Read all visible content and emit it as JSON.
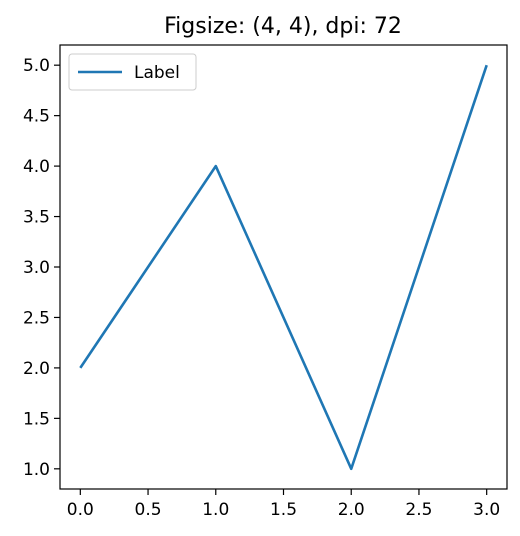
{
  "chart_data": {
    "type": "line",
    "title": "Figsize: (4, 4), dpi: 72",
    "xlabel": "",
    "ylabel": "",
    "x": [
      0,
      1,
      2,
      3
    ],
    "series": [
      {
        "name": "Label",
        "values": [
          2.0,
          4.0,
          1.0,
          5.0
        ],
        "color": "#1f77b4"
      }
    ],
    "xlim": [
      -0.15,
      3.15
    ],
    "ylim": [
      0.8,
      5.2
    ],
    "xticks": [
      0.0,
      0.5,
      1.0,
      1.5,
      2.0,
      2.5,
      3.0
    ],
    "xtick_labels": [
      "0.0",
      "0.5",
      "1.0",
      "1.5",
      "2.0",
      "2.5",
      "3.0"
    ],
    "yticks": [
      1.0,
      1.5,
      2.0,
      2.5,
      3.0,
      3.5,
      4.0,
      4.5,
      5.0
    ],
    "ytick_labels": [
      "1.0",
      "1.5",
      "2.0",
      "2.5",
      "3.0",
      "3.5",
      "4.0",
      "4.5",
      "5.0"
    ],
    "grid": false,
    "legend": {
      "position": "upper-left",
      "entries": [
        "Label"
      ]
    }
  }
}
